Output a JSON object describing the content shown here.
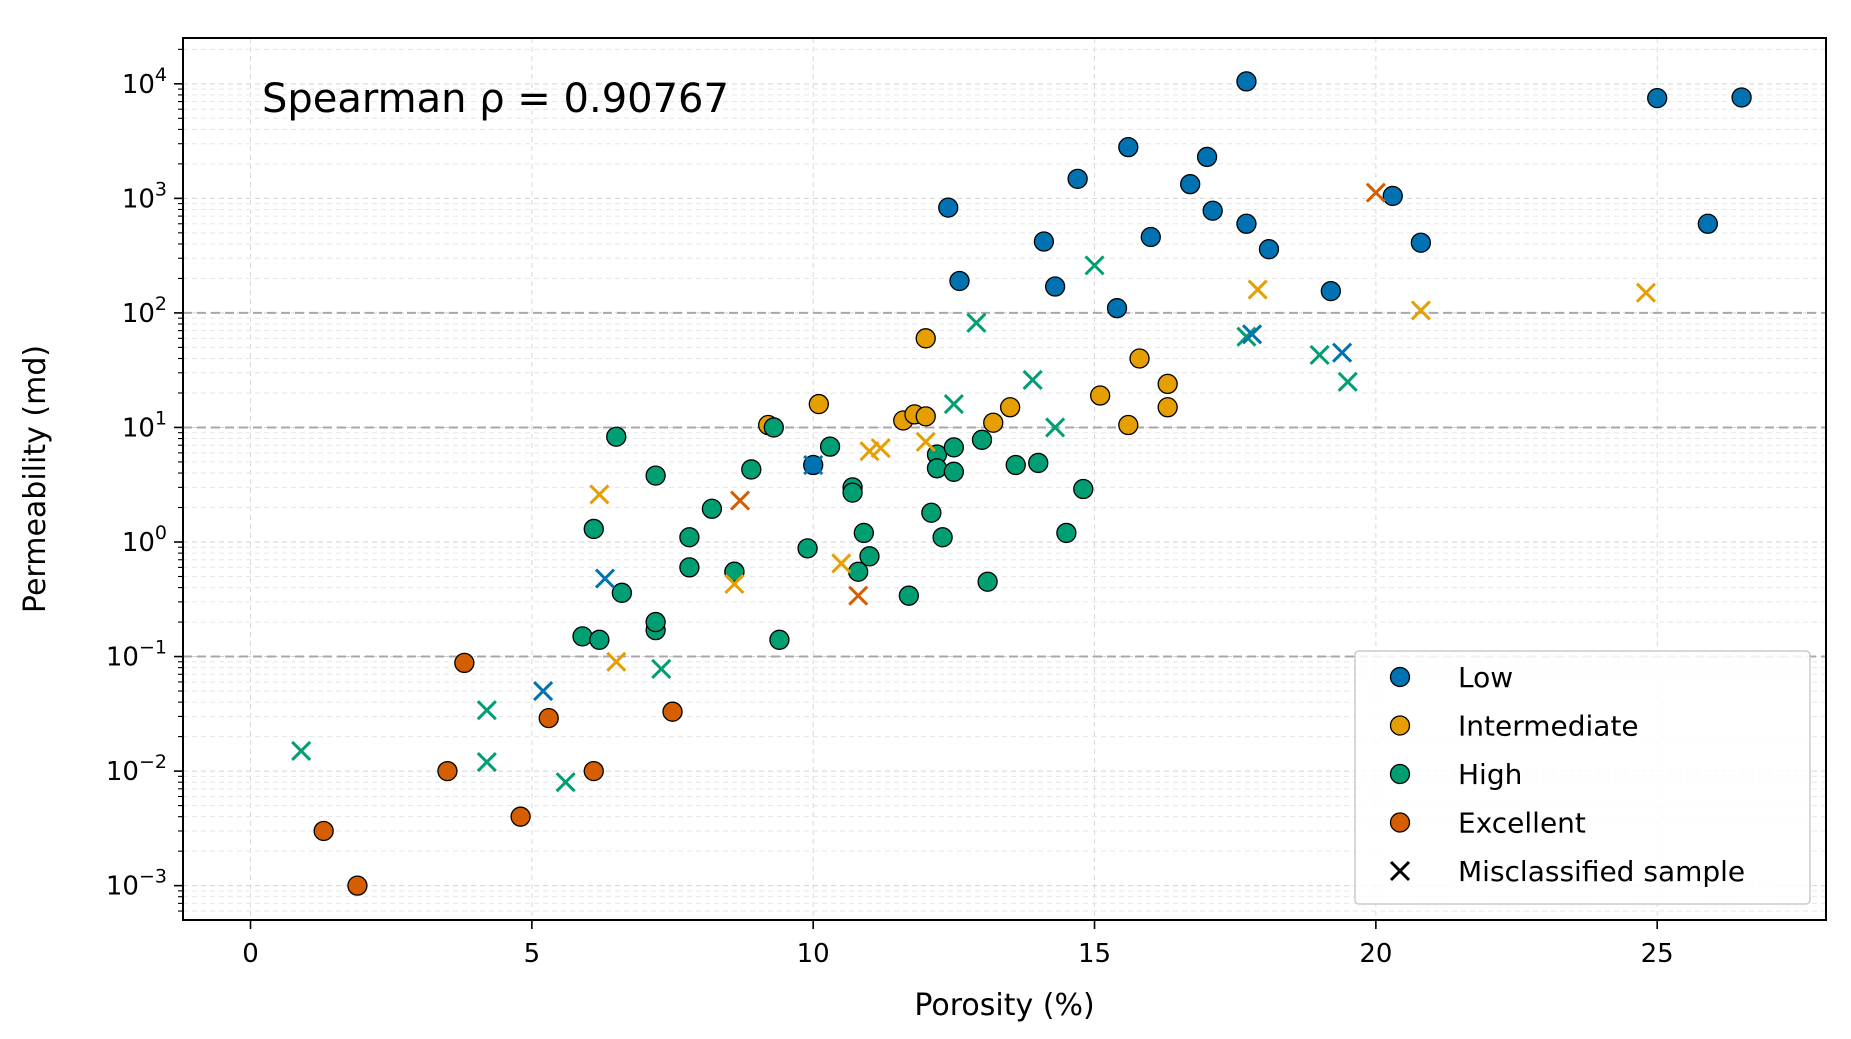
{
  "chart_data": {
    "type": "scatter",
    "xlabel": "Porosity (%)",
    "ylabel": "Permeability (md)",
    "xlim": [
      -1.2,
      28
    ],
    "ylim_log10": [
      -3.3,
      4.4
    ],
    "x_ticks": [
      0,
      5,
      10,
      15,
      20,
      25
    ],
    "x_tick_labels": [
      "0",
      "5",
      "10",
      "15",
      "20",
      "25"
    ],
    "y_ticks": [
      {
        "exp": -3,
        "base": "10",
        "sup": "−3"
      },
      {
        "exp": -2,
        "base": "10",
        "sup": "−2"
      },
      {
        "exp": -1,
        "base": "10",
        "sup": "−1"
      },
      {
        "exp": 0,
        "base": "10",
        "sup": "0"
      },
      {
        "exp": 1,
        "base": "10",
        "sup": "1"
      },
      {
        "exp": 2,
        "base": "10",
        "sup": "2"
      },
      {
        "exp": 3,
        "base": "10",
        "sup": "3"
      },
      {
        "exp": 4,
        "base": "10",
        "sup": "4"
      }
    ],
    "threshold_lines": [
      0.1,
      10,
      100
    ],
    "grid": true,
    "annotation": "Spearman ρ = 0.90767",
    "legend_position": "bottom-right",
    "legend": [
      {
        "label": "Low",
        "marker": "circle",
        "color": "#0072b2"
      },
      {
        "label": "Intermediate",
        "marker": "circle",
        "color": "#e69f00"
      },
      {
        "label": "High",
        "marker": "circle",
        "color": "#009e73"
      },
      {
        "label": "Excellent",
        "marker": "circle",
        "color": "#d55e00"
      },
      {
        "label": "Misclassified sample",
        "marker": "x",
        "color": "#000000"
      }
    ],
    "series": [
      {
        "name": "Low",
        "color": "#0072b2",
        "points": [
          [
            12.4,
            830
          ],
          [
            12.6,
            190
          ],
          [
            14.1,
            420
          ],
          [
            14.3,
            170
          ],
          [
            14.7,
            1480
          ],
          [
            15.4,
            110
          ],
          [
            15.6,
            2800
          ],
          [
            16.0,
            460
          ],
          [
            16.7,
            1330
          ],
          [
            17.0,
            2300
          ],
          [
            17.1,
            780
          ],
          [
            17.7,
            600
          ],
          [
            17.7,
            10500
          ],
          [
            18.1,
            360
          ],
          [
            19.2,
            155
          ],
          [
            20.3,
            1050
          ],
          [
            20.8,
            410
          ],
          [
            25.0,
            7500
          ],
          [
            25.9,
            600
          ],
          [
            26.5,
            7600
          ],
          [
            10.0,
            4.7
          ]
        ]
      },
      {
        "name": "Intermediate",
        "color": "#e69f00",
        "points": [
          [
            9.2,
            10.5
          ],
          [
            10.1,
            16
          ],
          [
            11.6,
            11.5
          ],
          [
            11.8,
            13
          ],
          [
            12.0,
            12.5
          ],
          [
            12.0,
            60
          ],
          [
            13.2,
            11
          ],
          [
            13.5,
            15
          ],
          [
            15.1,
            19
          ],
          [
            15.6,
            10.5
          ],
          [
            15.8,
            40
          ],
          [
            16.3,
            24
          ],
          [
            16.3,
            15
          ],
          [
            8.6,
            0.55
          ]
        ]
      },
      {
        "name": "High",
        "color": "#009e73",
        "points": [
          [
            5.9,
            0.15
          ],
          [
            6.1,
            1.3
          ],
          [
            6.2,
            0.14
          ],
          [
            6.5,
            8.3
          ],
          [
            6.6,
            0.36
          ],
          [
            7.2,
            0.17
          ],
          [
            7.2,
            0.2
          ],
          [
            7.2,
            3.8
          ],
          [
            7.8,
            1.1
          ],
          [
            7.8,
            0.6
          ],
          [
            8.2,
            1.95
          ],
          [
            8.6,
            0.55
          ],
          [
            8.9,
            4.3
          ],
          [
            9.3,
            10
          ],
          [
            9.4,
            0.14
          ],
          [
            9.9,
            0.88
          ],
          [
            10.3,
            6.8
          ],
          [
            10.7,
            3.0
          ],
          [
            10.7,
            2.7
          ],
          [
            10.8,
            0.55
          ],
          [
            10.9,
            1.2
          ],
          [
            11.0,
            0.75
          ],
          [
            11.7,
            0.34
          ],
          [
            12.1,
            1.8
          ],
          [
            12.2,
            5.8
          ],
          [
            12.2,
            4.4
          ],
          [
            12.3,
            1.1
          ],
          [
            12.5,
            6.7
          ],
          [
            12.5,
            4.1
          ],
          [
            13.0,
            7.8
          ],
          [
            13.1,
            0.45
          ],
          [
            13.6,
            4.7
          ],
          [
            14.0,
            4.9
          ],
          [
            14.5,
            1.2
          ],
          [
            14.8,
            2.9
          ]
        ]
      },
      {
        "name": "Excellent",
        "color": "#d55e00",
        "points": [
          [
            1.3,
            0.003
          ],
          [
            1.9,
            0.001
          ],
          [
            3.5,
            0.01
          ],
          [
            3.8,
            0.088
          ],
          [
            4.8,
            0.004
          ],
          [
            5.3,
            0.029
          ],
          [
            6.1,
            0.01
          ],
          [
            7.5,
            0.033
          ]
        ]
      }
    ],
    "misclassified": [
      {
        "x": 0.9,
        "y": 0.015,
        "color": "#009e73"
      },
      {
        "x": 4.2,
        "y": 0.034,
        "color": "#009e73"
      },
      {
        "x": 4.2,
        "y": 0.012,
        "color": "#009e73"
      },
      {
        "x": 5.2,
        "y": 0.05,
        "color": "#0072b2"
      },
      {
        "x": 5.6,
        "y": 0.008,
        "color": "#009e73"
      },
      {
        "x": 6.2,
        "y": 2.6,
        "color": "#e69f00"
      },
      {
        "x": 6.3,
        "y": 0.48,
        "color": "#0072b2"
      },
      {
        "x": 6.5,
        "y": 0.09,
        "color": "#e69f00"
      },
      {
        "x": 7.3,
        "y": 0.078,
        "color": "#009e73"
      },
      {
        "x": 8.6,
        "y": 0.43,
        "color": "#e69f00"
      },
      {
        "x": 8.7,
        "y": 2.3,
        "color": "#d55e00"
      },
      {
        "x": 10.0,
        "y": 4.7,
        "color": "#0072b2"
      },
      {
        "x": 10.5,
        "y": 0.65,
        "color": "#e69f00"
      },
      {
        "x": 10.8,
        "y": 0.34,
        "color": "#d55e00"
      },
      {
        "x": 11.0,
        "y": 6.2,
        "color": "#e69f00"
      },
      {
        "x": 11.2,
        "y": 6.6,
        "color": "#e69f00"
      },
      {
        "x": 12.0,
        "y": 7.5,
        "color": "#e69f00"
      },
      {
        "x": 12.5,
        "y": 16,
        "color": "#009e73"
      },
      {
        "x": 12.9,
        "y": 82,
        "color": "#009e73"
      },
      {
        "x": 13.9,
        "y": 26,
        "color": "#009e73"
      },
      {
        "x": 14.3,
        "y": 10,
        "color": "#009e73"
      },
      {
        "x": 15.0,
        "y": 260,
        "color": "#009e73"
      },
      {
        "x": 17.7,
        "y": 62,
        "color": "#009e73"
      },
      {
        "x": 17.8,
        "y": 65,
        "color": "#0072b2"
      },
      {
        "x": 17.9,
        "y": 160,
        "color": "#e69f00"
      },
      {
        "x": 19.0,
        "y": 43,
        "color": "#009e73"
      },
      {
        "x": 19.4,
        "y": 45,
        "color": "#0072b2"
      },
      {
        "x": 19.5,
        "y": 25,
        "color": "#009e73"
      },
      {
        "x": 20.0,
        "y": 1120,
        "color": "#d55e00"
      },
      {
        "x": 20.8,
        "y": 105,
        "color": "#e69f00"
      },
      {
        "x": 24.8,
        "y": 150,
        "color": "#e69f00"
      }
    ]
  }
}
